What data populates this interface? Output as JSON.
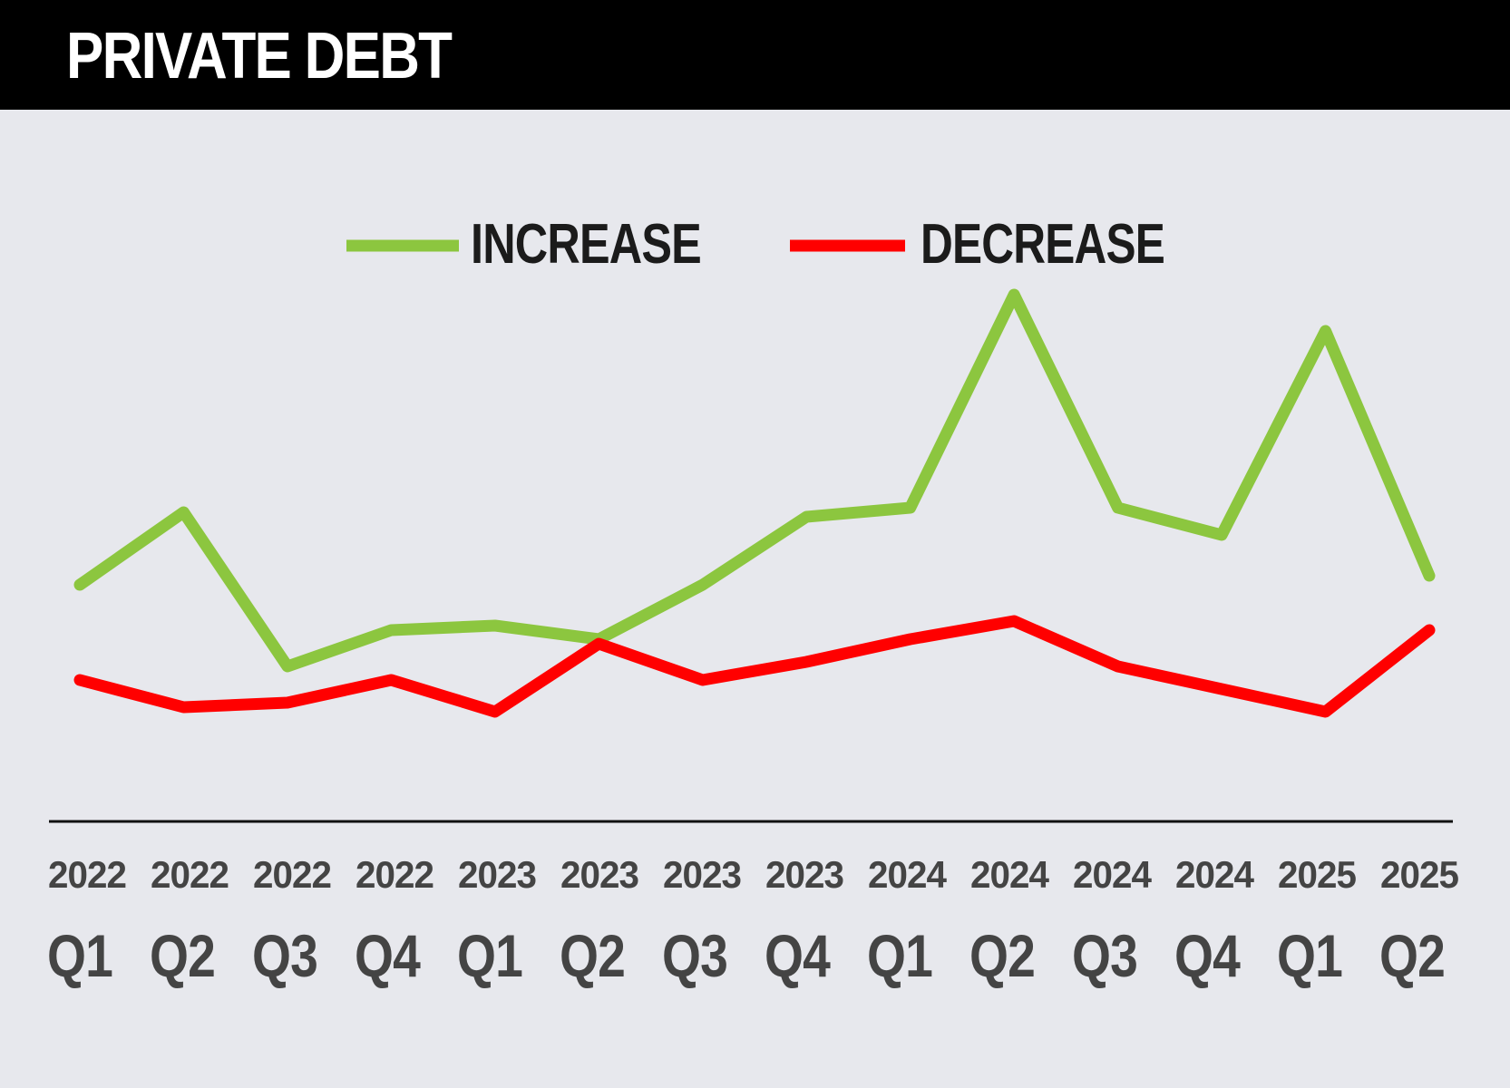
{
  "header": {
    "title": "PRIVATE DEBT"
  },
  "chart_data": {
    "type": "line",
    "title": "PRIVATE DEBT",
    "legend_position": "top-center",
    "grid": false,
    "categories": [
      {
        "year": "2022",
        "quarter": "Q1"
      },
      {
        "year": "2022",
        "quarter": "Q2"
      },
      {
        "year": "2022",
        "quarter": "Q3"
      },
      {
        "year": "2022",
        "quarter": "Q4"
      },
      {
        "year": "2023",
        "quarter": "Q1"
      },
      {
        "year": "2023",
        "quarter": "Q2"
      },
      {
        "year": "2023",
        "quarter": "Q3"
      },
      {
        "year": "2023",
        "quarter": "Q4"
      },
      {
        "year": "2024",
        "quarter": "Q1"
      },
      {
        "year": "2024",
        "quarter": "Q2"
      },
      {
        "year": "2024",
        "quarter": "Q3"
      },
      {
        "year": "2024",
        "quarter": "Q4"
      },
      {
        "year": "2025",
        "quarter": "Q1"
      },
      {
        "year": "2025",
        "quarter": "Q2"
      }
    ],
    "ylim": [
      0,
      100
    ],
    "series": [
      {
        "name": "INCREASE",
        "color": "#8cc63f",
        "values": [
          38,
          46,
          29,
          33,
          33.5,
          32,
          38,
          45.5,
          46.5,
          70,
          46.5,
          43.5,
          66,
          39
        ]
      },
      {
        "name": "DECREASE",
        "color": "#ff0000",
        "values": [
          27.5,
          24.5,
          25,
          27.5,
          24,
          31.5,
          27.5,
          29.5,
          32,
          34,
          29,
          26.5,
          24,
          33
        ]
      }
    ]
  }
}
